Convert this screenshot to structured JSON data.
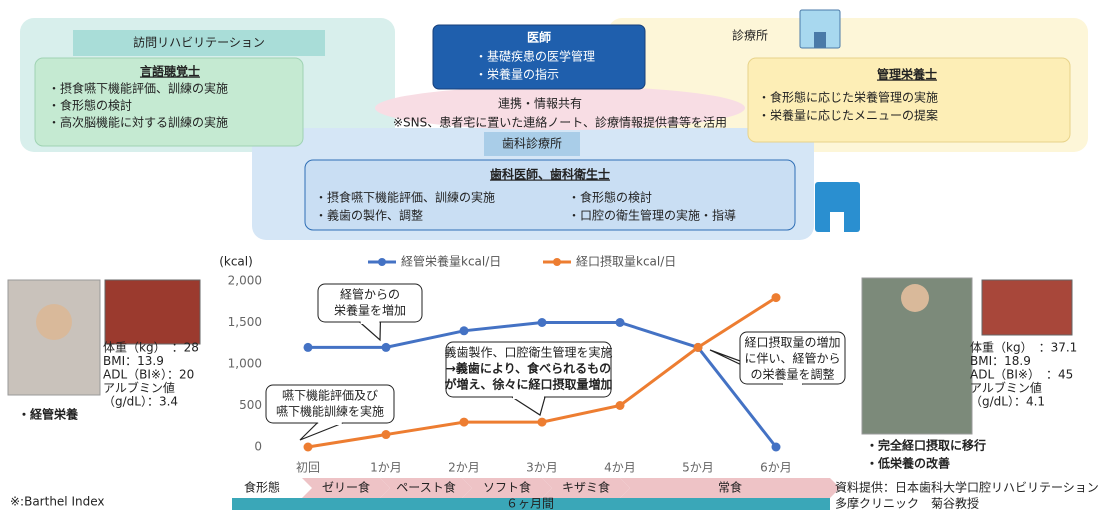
{
  "diagram": {
    "home_rehab": {
      "label": "訪問リハビリテーション",
      "role": "言語聴覚士",
      "items": [
        "・摂食嚥下機能評価、訓練の実施",
        "・食形態の検討",
        "・高次脳機能に対する訓練の実施"
      ]
    },
    "doctor": {
      "role": "医師",
      "items": [
        "・基礎疾患の医学管理",
        "・栄養量の指示"
      ]
    },
    "cooperation": {
      "label": "連携・情報共有",
      "note": "※SNS、患者宅に置いた連絡ノート、診療情報提供書等を活用"
    },
    "clinic": {
      "label": "診療所",
      "role": "管理栄養士",
      "items": [
        "・食形態に応じた栄養管理の実施",
        "・栄養量に応じたメニューの提案"
      ]
    },
    "dental": {
      "label": "歯科診療所",
      "role": "歯科医師、歯科衛生士",
      "items": [
        "・摂食嚥下機能評価、訓練の実施",
        "・食形態の検討",
        "・義歯の製作、調整",
        "・口腔の衛生管理の実施・指導"
      ]
    }
  },
  "chart_data": {
    "type": "line",
    "y_label": "(kcal)",
    "categories": [
      "初回",
      "1か月",
      "2か月",
      "3か月",
      "4か月",
      "5か月",
      "6か月"
    ],
    "series": [
      {
        "name": "経管栄養量kcal/日",
        "color": "#4472c4",
        "values": [
          1200,
          1200,
          1400,
          1500,
          1500,
          1200,
          0
        ]
      },
      {
        "name": "経口摂取量kcal/日",
        "color": "#ed7d31",
        "values": [
          0,
          150,
          300,
          300,
          500,
          1200,
          1800
        ]
      }
    ],
    "ylim": [
      0,
      2000
    ],
    "yticks": [
      0,
      500,
      {
        "value": 1000,
        "label": "1,000"
      },
      {
        "value": 1500,
        "label": "1,500"
      },
      {
        "value": 2000,
        "label": "2,000"
      }
    ],
    "grid": false,
    "annotations": [
      {
        "lines": [
          "経管からの",
          "栄養量を増加"
        ]
      },
      {
        "lines": [
          "嚥下機能評価及び",
          "嚥下機能訓練を実施"
        ]
      },
      {
        "lines": [
          "義歯製作、口腔衛生管理を実施",
          "→義歯により、食べられるもの",
          "が増え、徐々に経口摂取量増加"
        ]
      },
      {
        "lines": [
          "経口摂取量の増加",
          "に伴い、経管から",
          "の栄養量を調整"
        ]
      }
    ]
  },
  "patients": {
    "before": {
      "stats": [
        "体重（kg）　：28",
        "BMI：13.9",
        "ADL（BI※）：20",
        "アルブミン値",
        "（g/dL）：3.4"
      ],
      "outcome": [
        "・経管栄養"
      ]
    },
    "after": {
      "stats": [
        "体重（kg）　：37.1",
        "BMI：18.9",
        "ADL（BI※）　：45",
        "アルブミン値",
        "（g/dL）：4.1"
      ],
      "outcome": [
        "・完全経口摂取に移行",
        "・低栄養の改善"
      ]
    }
  },
  "timeline": {
    "label": "食形態",
    "stages": [
      "ゼリー食",
      "ペースト食",
      "ソフト食",
      "キザミ食",
      "常食"
    ],
    "duration": "６ヶ月間"
  },
  "footnote": "※:Barthel Index",
  "credit": [
    "資料提供：日本歯科大学口腔リハビリテーション",
    "多摩クリニック　菊谷教授"
  ]
}
